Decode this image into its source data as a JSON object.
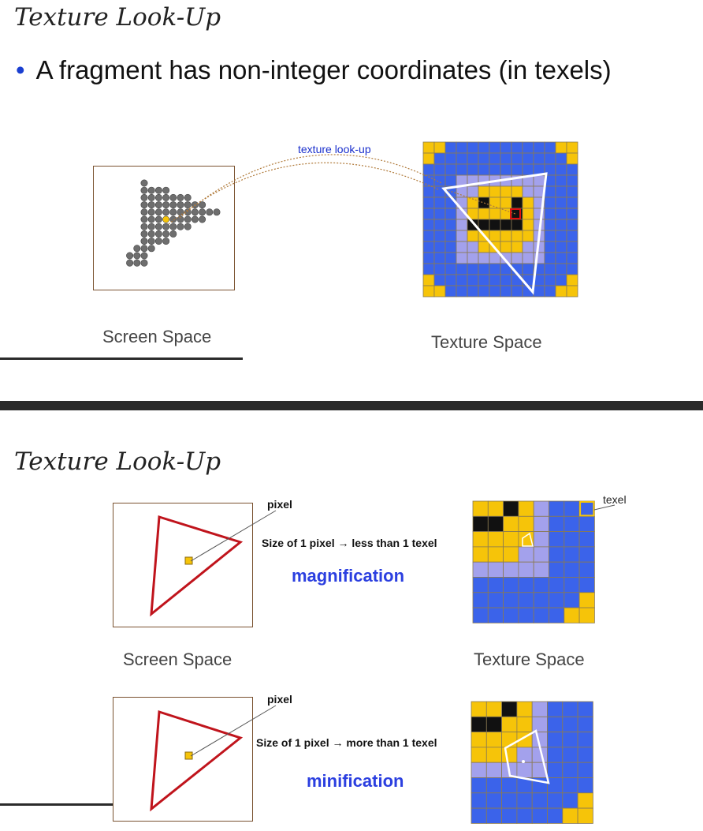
{
  "slide1": {
    "title": "Texture Look-Up",
    "bullet": "A fragment has non-integer coordinates (in texels)",
    "lookup_label": "texture look-up",
    "screen_caption": "Screen Space",
    "texture_caption": "Texture Space"
  },
  "slide2": {
    "title": "Texture Look-Up",
    "mag": {
      "pixel_label": "pixel",
      "texel_label": "texel",
      "size_text": "Size of 1 pixel → less than 1 texel",
      "term": "magnification",
      "screen_caption": "Screen Space",
      "texture_caption": "Texture Space"
    },
    "min": {
      "pixel_label": "pixel",
      "size_text": "Size of 1 pixel → more than 1 texel",
      "term": "minification"
    }
  },
  "colors": {
    "blue": "#3b63ea",
    "lavender": "#a3a1ec",
    "yellow": "#f6c409",
    "black": "#111111",
    "grid_line": "#8a7a52",
    "triangle_red": "#c0141c",
    "dot_gray": "#6e6e6e",
    "accent_blue": "#2b3fe0"
  }
}
